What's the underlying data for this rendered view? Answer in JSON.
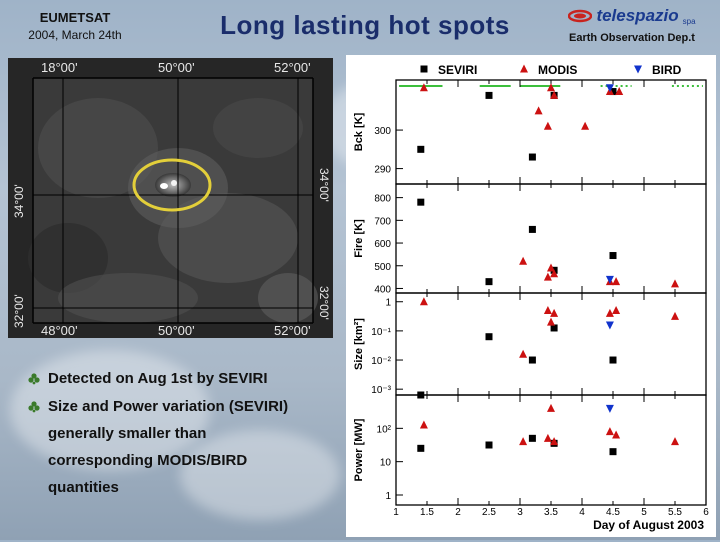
{
  "header": {
    "org": "EUMETSAT",
    "date": "2004, March 24th",
    "title": "Long lasting hot spots",
    "logo_text": "telespazio",
    "logo_suffix": "spa",
    "dept": "Earth Observation Dep.t"
  },
  "image_labels": {
    "top": [
      "18°00'",
      "50°00'",
      "52°00'"
    ],
    "bottom": [
      "48°00'",
      "50°00'",
      "52°00'"
    ],
    "left": [
      "34°00'",
      "32°00'"
    ],
    "right": [
      "34°00'",
      "32°00'"
    ]
  },
  "bullets": [
    "Detected on Aug 1st by SEVIRI",
    "Size and Power variation (SEVIRI)",
    "generally smaller than",
    "corresponding MODIS/BIRD",
    "quantities"
  ],
  "colors": {
    "title": "#1a2d6b",
    "bullet_mark": "#3a7a2a",
    "seviri": "#000000",
    "modis": "#cc1111",
    "bird": "#1133cc",
    "highlight_ellipse": "#e3cf3a"
  },
  "chart_data": {
    "type": "scatter",
    "legend": [
      "SEVIRI",
      "MODIS",
      "BIRD"
    ],
    "xlabel": "Day of August 2003",
    "xticks": [
      "1",
      "1.5",
      "2",
      "2.5",
      "3",
      "3.5",
      "4",
      "4.5",
      "5",
      "5.5",
      "6"
    ],
    "xlim": [
      1,
      6
    ],
    "panels": [
      {
        "ylabel": "Bck [K]",
        "yticks": [
          "290",
          "300"
        ],
        "ylim": [
          286,
          313
        ],
        "series": [
          {
            "name": "SEVIRI",
            "x": [
              1.4,
              2.5,
              3.2,
              3.55,
              4.5
            ],
            "y": [
              295,
              309,
              293,
              309,
              310
            ]
          },
          {
            "name": "MODIS",
            "x": [
              1.45,
              3.3,
              3.45,
              3.5,
              3.55,
              4.05,
              4.45,
              4.6
            ],
            "y": [
              311,
              305,
              301,
              311,
              309,
              301,
              310,
              310
            ]
          },
          {
            "name": "BIRD",
            "x": [
              4.45
            ],
            "y": [
              311
            ]
          }
        ]
      },
      {
        "ylabel": "Fire [K]",
        "yticks": [
          "400",
          "500",
          "600",
          "700",
          "800"
        ],
        "ylim": [
          380,
          860
        ],
        "series": [
          {
            "name": "SEVIRI",
            "x": [
              1.4,
              2.5,
              3.2,
              3.55,
              4.5
            ],
            "y": [
              780,
              430,
              660,
              480,
              545
            ]
          },
          {
            "name": "MODIS",
            "x": [
              3.05,
              3.45,
              3.5,
              3.55,
              4.45,
              4.55,
              5.5
            ],
            "y": [
              520,
              450,
              490,
              465,
              430,
              430,
              420
            ]
          },
          {
            "name": "BIRD",
            "x": [
              4.45
            ],
            "y": [
              440
            ]
          }
        ]
      },
      {
        "ylabel": "Size [km²]",
        "yticks": [
          "10⁻³",
          "10⁻²",
          "10⁻¹",
          "1"
        ],
        "ylim": [
          -3.2,
          0.3
        ],
        "series": [
          {
            "name": "SEVIRI",
            "x": [
              1.4,
              2.5,
              3.2,
              3.55,
              4.5
            ],
            "y": [
              -3.2,
              -1.2,
              -2.0,
              -0.9,
              -2.0
            ]
          },
          {
            "name": "MODIS",
            "x": [
              1.45,
              3.05,
              3.45,
              3.5,
              3.55,
              4.45,
              4.55,
              5.5
            ],
            "y": [
              0.0,
              -1.8,
              -0.3,
              -0.7,
              -0.4,
              -0.4,
              -0.3,
              -0.5
            ]
          },
          {
            "name": "BIRD",
            "x": [
              4.45
            ],
            "y": [
              -0.8
            ]
          }
        ]
      },
      {
        "ylabel": "Power [MW]",
        "yticks": [
          "1",
          "10",
          "10²"
        ],
        "ylim": [
          -0.3,
          3.0
        ],
        "series": [
          {
            "name": "SEVIRI",
            "x": [
              1.4,
              2.5,
              3.2,
              3.55,
              4.5
            ],
            "y": [
              1.4,
              1.5,
              1.7,
              1.55,
              1.3
            ]
          },
          {
            "name": "MODIS",
            "x": [
              1.45,
              3.05,
              3.45,
              3.5,
              3.55,
              4.45,
              4.55,
              5.5
            ],
            "y": [
              2.1,
              1.6,
              1.7,
              2.6,
              1.6,
              1.9,
              1.8,
              1.6
            ]
          },
          {
            "name": "BIRD",
            "x": [
              4.45
            ],
            "y": [
              2.6
            ]
          }
        ]
      }
    ]
  }
}
